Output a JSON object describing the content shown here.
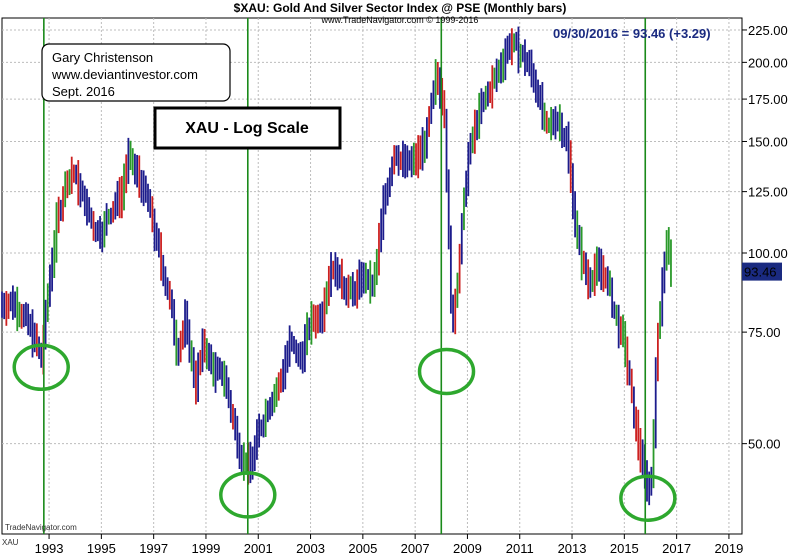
{
  "header": {
    "title": "$XAU:  Gold And Silver Sector Index @ PSE  (Monthly bars)",
    "source": "www.TradeNavigator.com © 1999-2016",
    "last_quote": "09/30/2016 = 93.46 (+3.29)",
    "footer_credit": "TradeNavigator.com",
    "symbol": "XAU"
  },
  "author_box": {
    "line1": "Gary Christenson",
    "line2": "www.deviantinvestor.com",
    "line3": "Sept. 2016"
  },
  "scale_box": {
    "label": "XAU - Log Scale"
  },
  "colors": {
    "bar_up": "#1c1c8c",
    "bar_down": "#cc2020",
    "bar_mixed": "#2a9a2a",
    "cycle_line": "#1a8a1a",
    "circle": "#2ea82e",
    "last_label_bg": "#1a2a80"
  },
  "chart_data": {
    "type": "bar",
    "title": "$XAU:  Gold And Silver Sector Index @ PSE  (Monthly bars)",
    "scale": "log",
    "grid": true,
    "ylim": [
      36,
      235
    ],
    "xlim": [
      1991.2,
      2019.5
    ],
    "y_ticks": [
      {
        "value": 50,
        "label": "50.00"
      },
      {
        "value": 75,
        "label": "75.00"
      },
      {
        "value": 100,
        "label": "100.00"
      },
      {
        "value": 125,
        "label": "125.00"
      },
      {
        "value": 150,
        "label": "150.00"
      },
      {
        "value": 175,
        "label": "175.00"
      },
      {
        "value": 200,
        "label": "200.00"
      },
      {
        "value": 225,
        "label": "225.00"
      }
    ],
    "x_ticks": [
      {
        "value": 1993,
        "label": "1993"
      },
      {
        "value": 1995,
        "label": "1995"
      },
      {
        "value": 1997,
        "label": "1997"
      },
      {
        "value": 1999,
        "label": "1999"
      },
      {
        "value": 2001,
        "label": "2001"
      },
      {
        "value": 2003,
        "label": "2003"
      },
      {
        "value": 2005,
        "label": "2005"
      },
      {
        "value": 2007,
        "label": "2007"
      },
      {
        "value": 2009,
        "label": "2009"
      },
      {
        "value": 2011,
        "label": "2011"
      },
      {
        "value": 2013,
        "label": "2013"
      },
      {
        "value": 2015,
        "label": "2015"
      },
      {
        "value": 2017,
        "label": "2017"
      },
      {
        "value": 2019,
        "label": "2019"
      }
    ],
    "last_value": {
      "value": 93.46,
      "label": "93.46"
    },
    "cycle_lines": [
      1992.8,
      2000.6,
      2008.0,
      2015.8
    ],
    "cycle_lows": [
      {
        "x": 1992.7,
        "y": 66
      },
      {
        "x": 2000.6,
        "y": 41.5
      },
      {
        "x": 2008.2,
        "y": 65
      },
      {
        "x": 2015.9,
        "y": 41
      }
    ],
    "price_path": [
      [
        1991.2,
        83
      ],
      [
        1991.6,
        84
      ],
      [
        1992.0,
        80
      ],
      [
        1992.4,
        74
      ],
      [
        1992.7,
        68
      ],
      [
        1993.0,
        90
      ],
      [
        1993.3,
        112
      ],
      [
        1993.6,
        128
      ],
      [
        1993.9,
        135
      ],
      [
        1994.3,
        122
      ],
      [
        1994.7,
        110
      ],
      [
        1995.0,
        108
      ],
      [
        1995.4,
        118
      ],
      [
        1995.8,
        125
      ],
      [
        1996.0,
        142
      ],
      [
        1996.4,
        132
      ],
      [
        1996.8,
        120
      ],
      [
        1997.2,
        100
      ],
      [
        1997.6,
        85
      ],
      [
        1997.9,
        70
      ],
      [
        1998.2,
        78
      ],
      [
        1998.6,
        62
      ],
      [
        1998.9,
        72
      ],
      [
        1999.3,
        65
      ],
      [
        1999.7,
        64
      ],
      [
        2000.0,
        55
      ],
      [
        2000.4,
        47
      ],
      [
        2000.7,
        46
      ],
      [
        2001.0,
        52
      ],
      [
        2001.4,
        58
      ],
      [
        2001.8,
        62
      ],
      [
        2002.2,
        72
      ],
      [
        2002.6,
        68
      ],
      [
        2003.0,
        78
      ],
      [
        2003.4,
        80
      ],
      [
        2003.8,
        96
      ],
      [
        2004.2,
        90
      ],
      [
        2004.6,
        86
      ],
      [
        2005.0,
        92
      ],
      [
        2005.4,
        88
      ],
      [
        2005.8,
        120
      ],
      [
        2006.2,
        145
      ],
      [
        2006.6,
        138
      ],
      [
        2007.0,
        140
      ],
      [
        2007.4,
        150
      ],
      [
        2007.8,
        190
      ],
      [
        2008.1,
        175
      ],
      [
        2008.4,
        75
      ],
      [
        2008.7,
        100
      ],
      [
        2009.0,
        140
      ],
      [
        2009.4,
        165
      ],
      [
        2009.8,
        180
      ],
      [
        2010.2,
        195
      ],
      [
        2010.6,
        215
      ],
      [
        2010.9,
        210
      ],
      [
        2011.3,
        200
      ],
      [
        2011.7,
        180
      ],
      [
        2012.0,
        155
      ],
      [
        2012.4,
        165
      ],
      [
        2012.8,
        150
      ],
      [
        2013.2,
        105
      ],
      [
        2013.6,
        90
      ],
      [
        2013.9,
        95
      ],
      [
        2014.3,
        92
      ],
      [
        2014.7,
        78
      ],
      [
        2015.0,
        72
      ],
      [
        2015.4,
        54
      ],
      [
        2015.8,
        44
      ],
      [
        2016.0,
        42
      ],
      [
        2016.3,
        78
      ],
      [
        2016.6,
        105
      ],
      [
        2016.8,
        93.46
      ]
    ]
  }
}
